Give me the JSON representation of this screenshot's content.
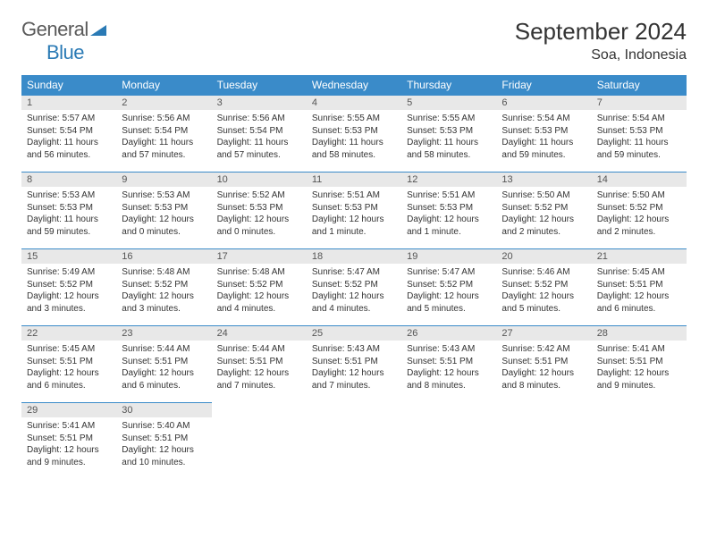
{
  "logo": {
    "general": "General",
    "blue": "Blue"
  },
  "title": "September 2024",
  "location": "Soa, Indonesia",
  "dayHeaders": [
    "Sunday",
    "Monday",
    "Tuesday",
    "Wednesday",
    "Thursday",
    "Friday",
    "Saturday"
  ],
  "colors": {
    "headerBg": "#3a8bc9",
    "headerText": "#ffffff",
    "dayNumBg": "#e8e8e8",
    "border": "#3a8bc9",
    "logoBlue": "#2a7ab5",
    "logoGray": "#5a5a5a",
    "background": "#ffffff",
    "text": "#333333"
  },
  "weeks": [
    [
      {
        "num": "1",
        "sunrise": "Sunrise: 5:57 AM",
        "sunset": "Sunset: 5:54 PM",
        "daylight": "Daylight: 11 hours and 56 minutes."
      },
      {
        "num": "2",
        "sunrise": "Sunrise: 5:56 AM",
        "sunset": "Sunset: 5:54 PM",
        "daylight": "Daylight: 11 hours and 57 minutes."
      },
      {
        "num": "3",
        "sunrise": "Sunrise: 5:56 AM",
        "sunset": "Sunset: 5:54 PM",
        "daylight": "Daylight: 11 hours and 57 minutes."
      },
      {
        "num": "4",
        "sunrise": "Sunrise: 5:55 AM",
        "sunset": "Sunset: 5:53 PM",
        "daylight": "Daylight: 11 hours and 58 minutes."
      },
      {
        "num": "5",
        "sunrise": "Sunrise: 5:55 AM",
        "sunset": "Sunset: 5:53 PM",
        "daylight": "Daylight: 11 hours and 58 minutes."
      },
      {
        "num": "6",
        "sunrise": "Sunrise: 5:54 AM",
        "sunset": "Sunset: 5:53 PM",
        "daylight": "Daylight: 11 hours and 59 minutes."
      },
      {
        "num": "7",
        "sunrise": "Sunrise: 5:54 AM",
        "sunset": "Sunset: 5:53 PM",
        "daylight": "Daylight: 11 hours and 59 minutes."
      }
    ],
    [
      {
        "num": "8",
        "sunrise": "Sunrise: 5:53 AM",
        "sunset": "Sunset: 5:53 PM",
        "daylight": "Daylight: 11 hours and 59 minutes."
      },
      {
        "num": "9",
        "sunrise": "Sunrise: 5:53 AM",
        "sunset": "Sunset: 5:53 PM",
        "daylight": "Daylight: 12 hours and 0 minutes."
      },
      {
        "num": "10",
        "sunrise": "Sunrise: 5:52 AM",
        "sunset": "Sunset: 5:53 PM",
        "daylight": "Daylight: 12 hours and 0 minutes."
      },
      {
        "num": "11",
        "sunrise": "Sunrise: 5:51 AM",
        "sunset": "Sunset: 5:53 PM",
        "daylight": "Daylight: 12 hours and 1 minute."
      },
      {
        "num": "12",
        "sunrise": "Sunrise: 5:51 AM",
        "sunset": "Sunset: 5:53 PM",
        "daylight": "Daylight: 12 hours and 1 minute."
      },
      {
        "num": "13",
        "sunrise": "Sunrise: 5:50 AM",
        "sunset": "Sunset: 5:52 PM",
        "daylight": "Daylight: 12 hours and 2 minutes."
      },
      {
        "num": "14",
        "sunrise": "Sunrise: 5:50 AM",
        "sunset": "Sunset: 5:52 PM",
        "daylight": "Daylight: 12 hours and 2 minutes."
      }
    ],
    [
      {
        "num": "15",
        "sunrise": "Sunrise: 5:49 AM",
        "sunset": "Sunset: 5:52 PM",
        "daylight": "Daylight: 12 hours and 3 minutes."
      },
      {
        "num": "16",
        "sunrise": "Sunrise: 5:48 AM",
        "sunset": "Sunset: 5:52 PM",
        "daylight": "Daylight: 12 hours and 3 minutes."
      },
      {
        "num": "17",
        "sunrise": "Sunrise: 5:48 AM",
        "sunset": "Sunset: 5:52 PM",
        "daylight": "Daylight: 12 hours and 4 minutes."
      },
      {
        "num": "18",
        "sunrise": "Sunrise: 5:47 AM",
        "sunset": "Sunset: 5:52 PM",
        "daylight": "Daylight: 12 hours and 4 minutes."
      },
      {
        "num": "19",
        "sunrise": "Sunrise: 5:47 AM",
        "sunset": "Sunset: 5:52 PM",
        "daylight": "Daylight: 12 hours and 5 minutes."
      },
      {
        "num": "20",
        "sunrise": "Sunrise: 5:46 AM",
        "sunset": "Sunset: 5:52 PM",
        "daylight": "Daylight: 12 hours and 5 minutes."
      },
      {
        "num": "21",
        "sunrise": "Sunrise: 5:45 AM",
        "sunset": "Sunset: 5:51 PM",
        "daylight": "Daylight: 12 hours and 6 minutes."
      }
    ],
    [
      {
        "num": "22",
        "sunrise": "Sunrise: 5:45 AM",
        "sunset": "Sunset: 5:51 PM",
        "daylight": "Daylight: 12 hours and 6 minutes."
      },
      {
        "num": "23",
        "sunrise": "Sunrise: 5:44 AM",
        "sunset": "Sunset: 5:51 PM",
        "daylight": "Daylight: 12 hours and 6 minutes."
      },
      {
        "num": "24",
        "sunrise": "Sunrise: 5:44 AM",
        "sunset": "Sunset: 5:51 PM",
        "daylight": "Daylight: 12 hours and 7 minutes."
      },
      {
        "num": "25",
        "sunrise": "Sunrise: 5:43 AM",
        "sunset": "Sunset: 5:51 PM",
        "daylight": "Daylight: 12 hours and 7 minutes."
      },
      {
        "num": "26",
        "sunrise": "Sunrise: 5:43 AM",
        "sunset": "Sunset: 5:51 PM",
        "daylight": "Daylight: 12 hours and 8 minutes."
      },
      {
        "num": "27",
        "sunrise": "Sunrise: 5:42 AM",
        "sunset": "Sunset: 5:51 PM",
        "daylight": "Daylight: 12 hours and 8 minutes."
      },
      {
        "num": "28",
        "sunrise": "Sunrise: 5:41 AM",
        "sunset": "Sunset: 5:51 PM",
        "daylight": "Daylight: 12 hours and 9 minutes."
      }
    ],
    [
      {
        "num": "29",
        "sunrise": "Sunrise: 5:41 AM",
        "sunset": "Sunset: 5:51 PM",
        "daylight": "Daylight: 12 hours and 9 minutes."
      },
      {
        "num": "30",
        "sunrise": "Sunrise: 5:40 AM",
        "sunset": "Sunset: 5:51 PM",
        "daylight": "Daylight: 12 hours and 10 minutes."
      },
      {
        "empty": true
      },
      {
        "empty": true
      },
      {
        "empty": true
      },
      {
        "empty": true
      },
      {
        "empty": true
      }
    ]
  ]
}
